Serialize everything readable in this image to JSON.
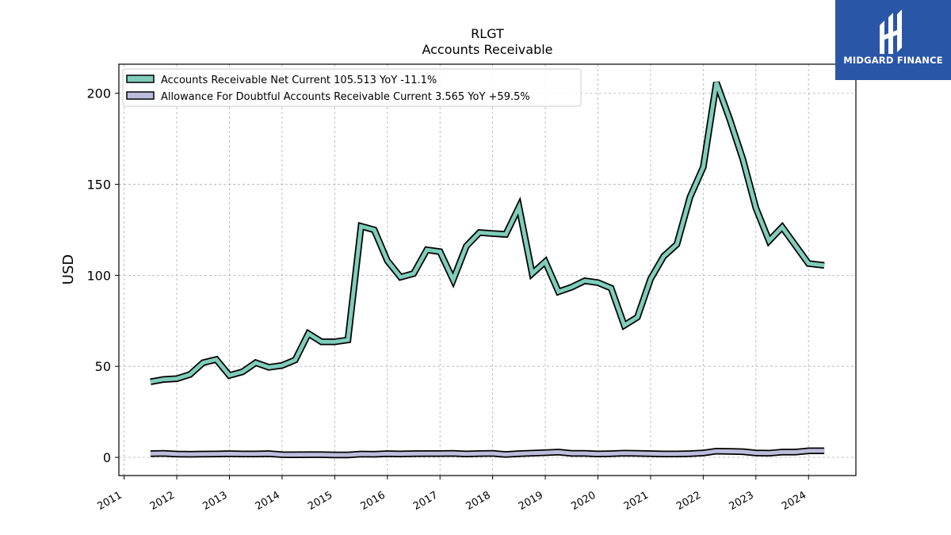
{
  "chart_data": {
    "type": "line",
    "title_line1": "RLGT",
    "title_line2": "Accounts Receivable",
    "xlabel": "",
    "ylabel": "USD",
    "ylim": [
      -10,
      216
    ],
    "xlim": [
      2010.9,
      2024.9
    ],
    "yticks": [
      0,
      50,
      100,
      150,
      200
    ],
    "xticks": [
      "2011",
      "2012",
      "2013",
      "2014",
      "2015",
      "2016",
      "2017",
      "2018",
      "2019",
      "2020",
      "2021",
      "2022",
      "2023",
      "2024"
    ],
    "grid": true,
    "legend_position": "top-left",
    "series": [
      {
        "name": "Accounts Receivable Net Current  105.513 YoY -11.1%",
        "color": "#7fcdbb",
        "points": [
          [
            2011.5,
            41.5
          ],
          [
            2011.75,
            42.8
          ],
          [
            2012.0,
            43.2
          ],
          [
            2012.25,
            45.5
          ],
          [
            2012.5,
            52.0
          ],
          [
            2012.75,
            53.8
          ],
          [
            2013.0,
            45.0
          ],
          [
            2013.25,
            47.0
          ],
          [
            2013.5,
            52.0
          ],
          [
            2013.75,
            49.5
          ],
          [
            2014.0,
            50.5
          ],
          [
            2014.25,
            53.5
          ],
          [
            2014.5,
            68.0
          ],
          [
            2014.75,
            63.5
          ],
          [
            2015.0,
            63.5
          ],
          [
            2015.25,
            64.5
          ],
          [
            2015.5,
            127.0
          ],
          [
            2015.75,
            125.0
          ],
          [
            2016.0,
            108.0
          ],
          [
            2016.25,
            99.0
          ],
          [
            2016.5,
            101.0
          ],
          [
            2016.75,
            114.0
          ],
          [
            2017.0,
            113.0
          ],
          [
            2017.25,
            97.5
          ],
          [
            2017.5,
            116.0
          ],
          [
            2017.75,
            123.5
          ],
          [
            2018.0,
            123.0
          ],
          [
            2018.25,
            122.5
          ],
          [
            2018.5,
            137.5
          ],
          [
            2018.75,
            101.0
          ],
          [
            2019.0,
            107.5
          ],
          [
            2019.25,
            91.0
          ],
          [
            2019.5,
            93.5
          ],
          [
            2019.75,
            97.0
          ],
          [
            2020.0,
            96.0
          ],
          [
            2020.25,
            93.0
          ],
          [
            2020.5,
            72.5
          ],
          [
            2020.75,
            77.0
          ],
          [
            2021.0,
            98.0
          ],
          [
            2021.25,
            110.5
          ],
          [
            2021.5,
            117.0
          ],
          [
            2021.75,
            143.0
          ],
          [
            2022.0,
            159.5
          ],
          [
            2022.25,
            206.0
          ],
          [
            2022.5,
            186.0
          ],
          [
            2022.75,
            164.0
          ],
          [
            2023.0,
            137.0
          ],
          [
            2023.25,
            119.0
          ],
          [
            2023.5,
            126.5
          ],
          [
            2023.75,
            116.5
          ],
          [
            2024.0,
            106.5
          ],
          [
            2024.3,
            105.5
          ]
        ]
      },
      {
        "name": "Allowance For Doubtful Accounts Receivable Current  3.565 YoY +59.5%",
        "color": "#bcbddc",
        "points": [
          [
            2011.5,
            2.0
          ],
          [
            2011.75,
            2.2
          ],
          [
            2012.0,
            1.8
          ],
          [
            2012.25,
            1.7
          ],
          [
            2012.5,
            1.8
          ],
          [
            2012.75,
            1.9
          ],
          [
            2013.0,
            2.0
          ],
          [
            2013.25,
            1.9
          ],
          [
            2013.5,
            1.9
          ],
          [
            2013.75,
            2.0
          ],
          [
            2014.0,
            1.5
          ],
          [
            2014.25,
            1.4
          ],
          [
            2014.5,
            1.5
          ],
          [
            2014.75,
            1.5
          ],
          [
            2015.0,
            1.3
          ],
          [
            2015.25,
            1.3
          ],
          [
            2015.5,
            1.8
          ],
          [
            2015.75,
            1.7
          ],
          [
            2016.0,
            2.0
          ],
          [
            2016.25,
            1.9
          ],
          [
            2016.5,
            2.0
          ],
          [
            2016.75,
            2.1
          ],
          [
            2017.0,
            2.1
          ],
          [
            2017.25,
            2.2
          ],
          [
            2017.5,
            1.9
          ],
          [
            2017.75,
            2.1
          ],
          [
            2018.0,
            2.2
          ],
          [
            2018.25,
            1.6
          ],
          [
            2018.5,
            2.0
          ],
          [
            2018.75,
            2.3
          ],
          [
            2019.0,
            2.6
          ],
          [
            2019.25,
            2.9
          ],
          [
            2019.5,
            2.2
          ],
          [
            2019.75,
            2.2
          ],
          [
            2020.0,
            1.9
          ],
          [
            2020.25,
            2.0
          ],
          [
            2020.5,
            2.3
          ],
          [
            2020.75,
            2.2
          ],
          [
            2021.0,
            2.0
          ],
          [
            2021.25,
            1.9
          ],
          [
            2021.5,
            1.9
          ],
          [
            2021.75,
            2.0
          ],
          [
            2022.0,
            2.4
          ],
          [
            2022.25,
            3.4
          ],
          [
            2022.5,
            3.3
          ],
          [
            2022.75,
            3.1
          ],
          [
            2023.0,
            2.4
          ],
          [
            2023.25,
            2.3
          ],
          [
            2023.5,
            2.9
          ],
          [
            2023.75,
            2.9
          ],
          [
            2024.0,
            3.6
          ],
          [
            2024.3,
            3.6
          ]
        ]
      }
    ]
  },
  "logo": {
    "text": "MIDGARD FINANCE",
    "background": "#2a56a8"
  }
}
